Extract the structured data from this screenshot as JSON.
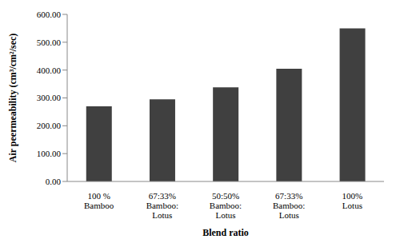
{
  "chart_data": {
    "type": "bar",
    "categories": [
      "100 % Bamboo",
      "67:33% Bamboo: Lotus",
      "50:50% Bamboo: Lotus",
      "67:33% Bamboo: Lotus",
      "100% Lotus"
    ],
    "values": [
      270,
      295,
      338,
      405,
      550
    ],
    "color": "#404040",
    "ylim": [
      0,
      600
    ],
    "yticks": [
      {
        "value": 0,
        "label": "0.00"
      },
      {
        "value": 100,
        "label": "100.00"
      },
      {
        "value": 200,
        "label": "200.00"
      },
      {
        "value": 300,
        "label": "300.00"
      },
      {
        "value": 400,
        "label": "400.00"
      },
      {
        "value": 500,
        "label": "500.00"
      },
      {
        "value": 600,
        "label": "600.00"
      }
    ],
    "x_label": "Blend ratio",
    "y_label": "Air peermeability (cm³/cm²/sec)",
    "grid": false
  }
}
